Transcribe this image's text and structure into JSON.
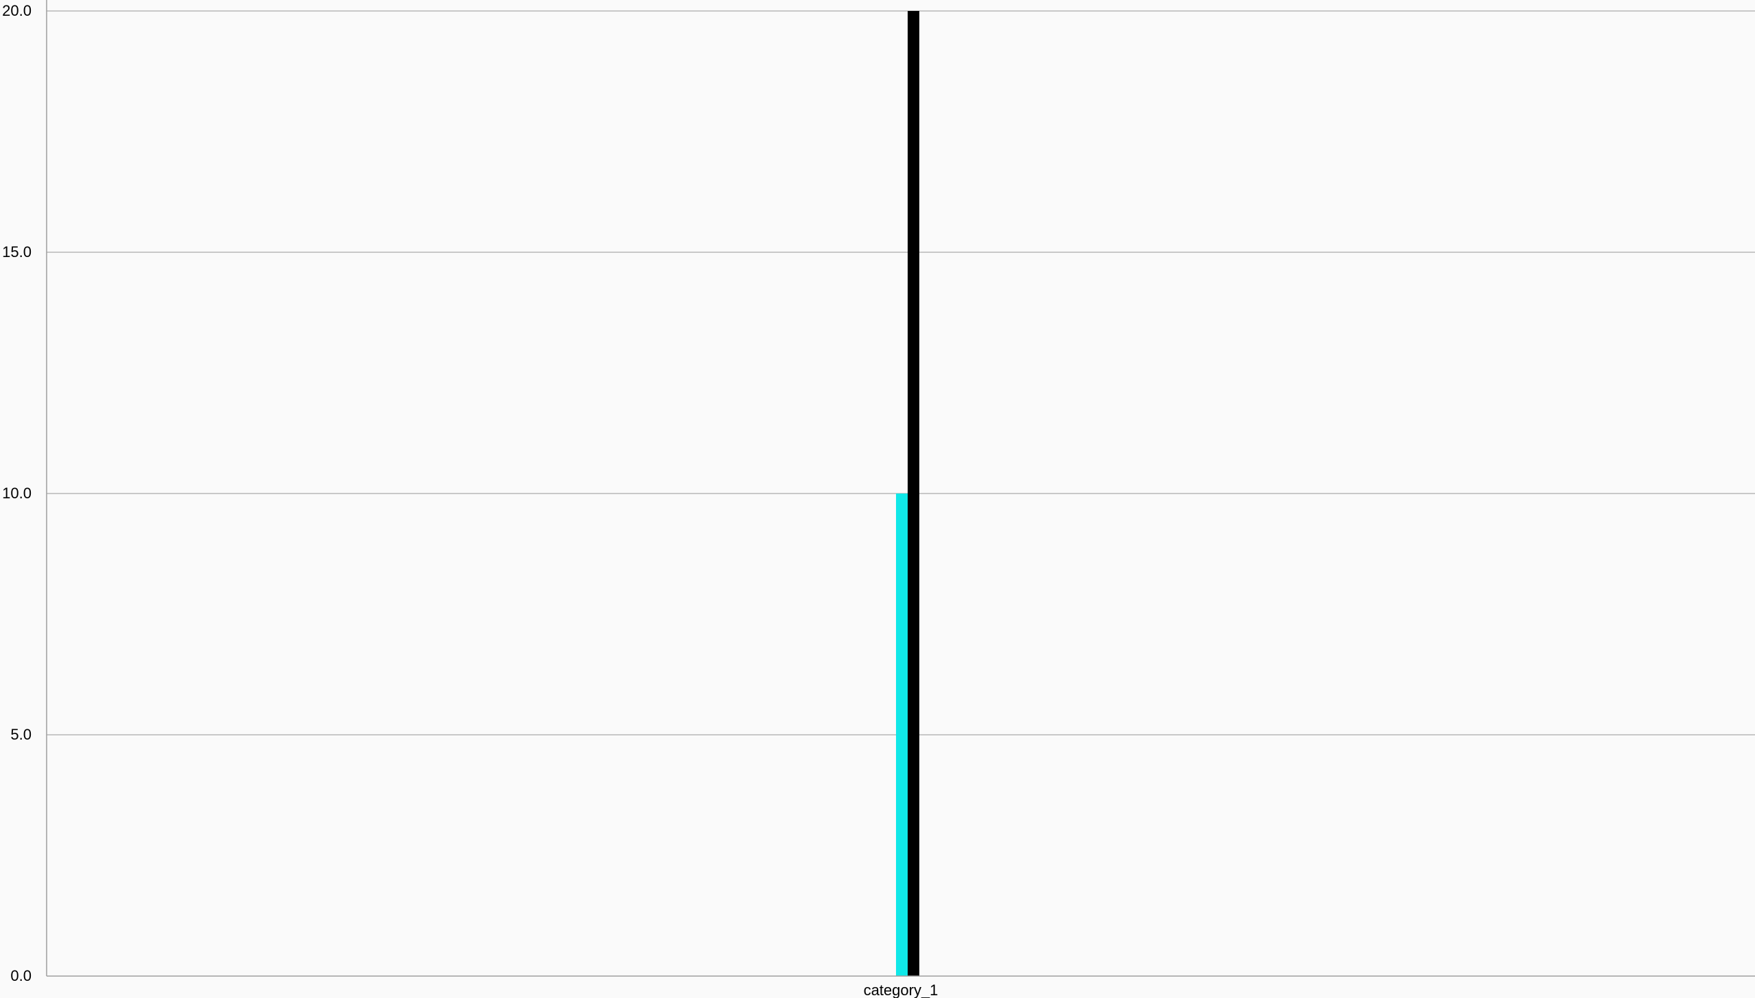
{
  "chart_data": {
    "type": "bar",
    "categories": [
      "category_1"
    ],
    "series": [
      {
        "values": [
          10.0
        ],
        "color": "#10E8E8"
      },
      {
        "values": [
          20.0
        ],
        "color": "#000000"
      }
    ],
    "title": "",
    "xlabel": "",
    "ylabel": "",
    "ylim": [
      0,
      20
    ],
    "yticks": [
      "0.0",
      "5.0",
      "10.0",
      "15.0",
      "20.0"
    ],
    "grid": true,
    "legend": "none"
  },
  "colors": {
    "background": "#fafafa",
    "plot_background": "#fafafa",
    "gridline": "#b8b8b8",
    "axis": "#9e9e9e"
  }
}
